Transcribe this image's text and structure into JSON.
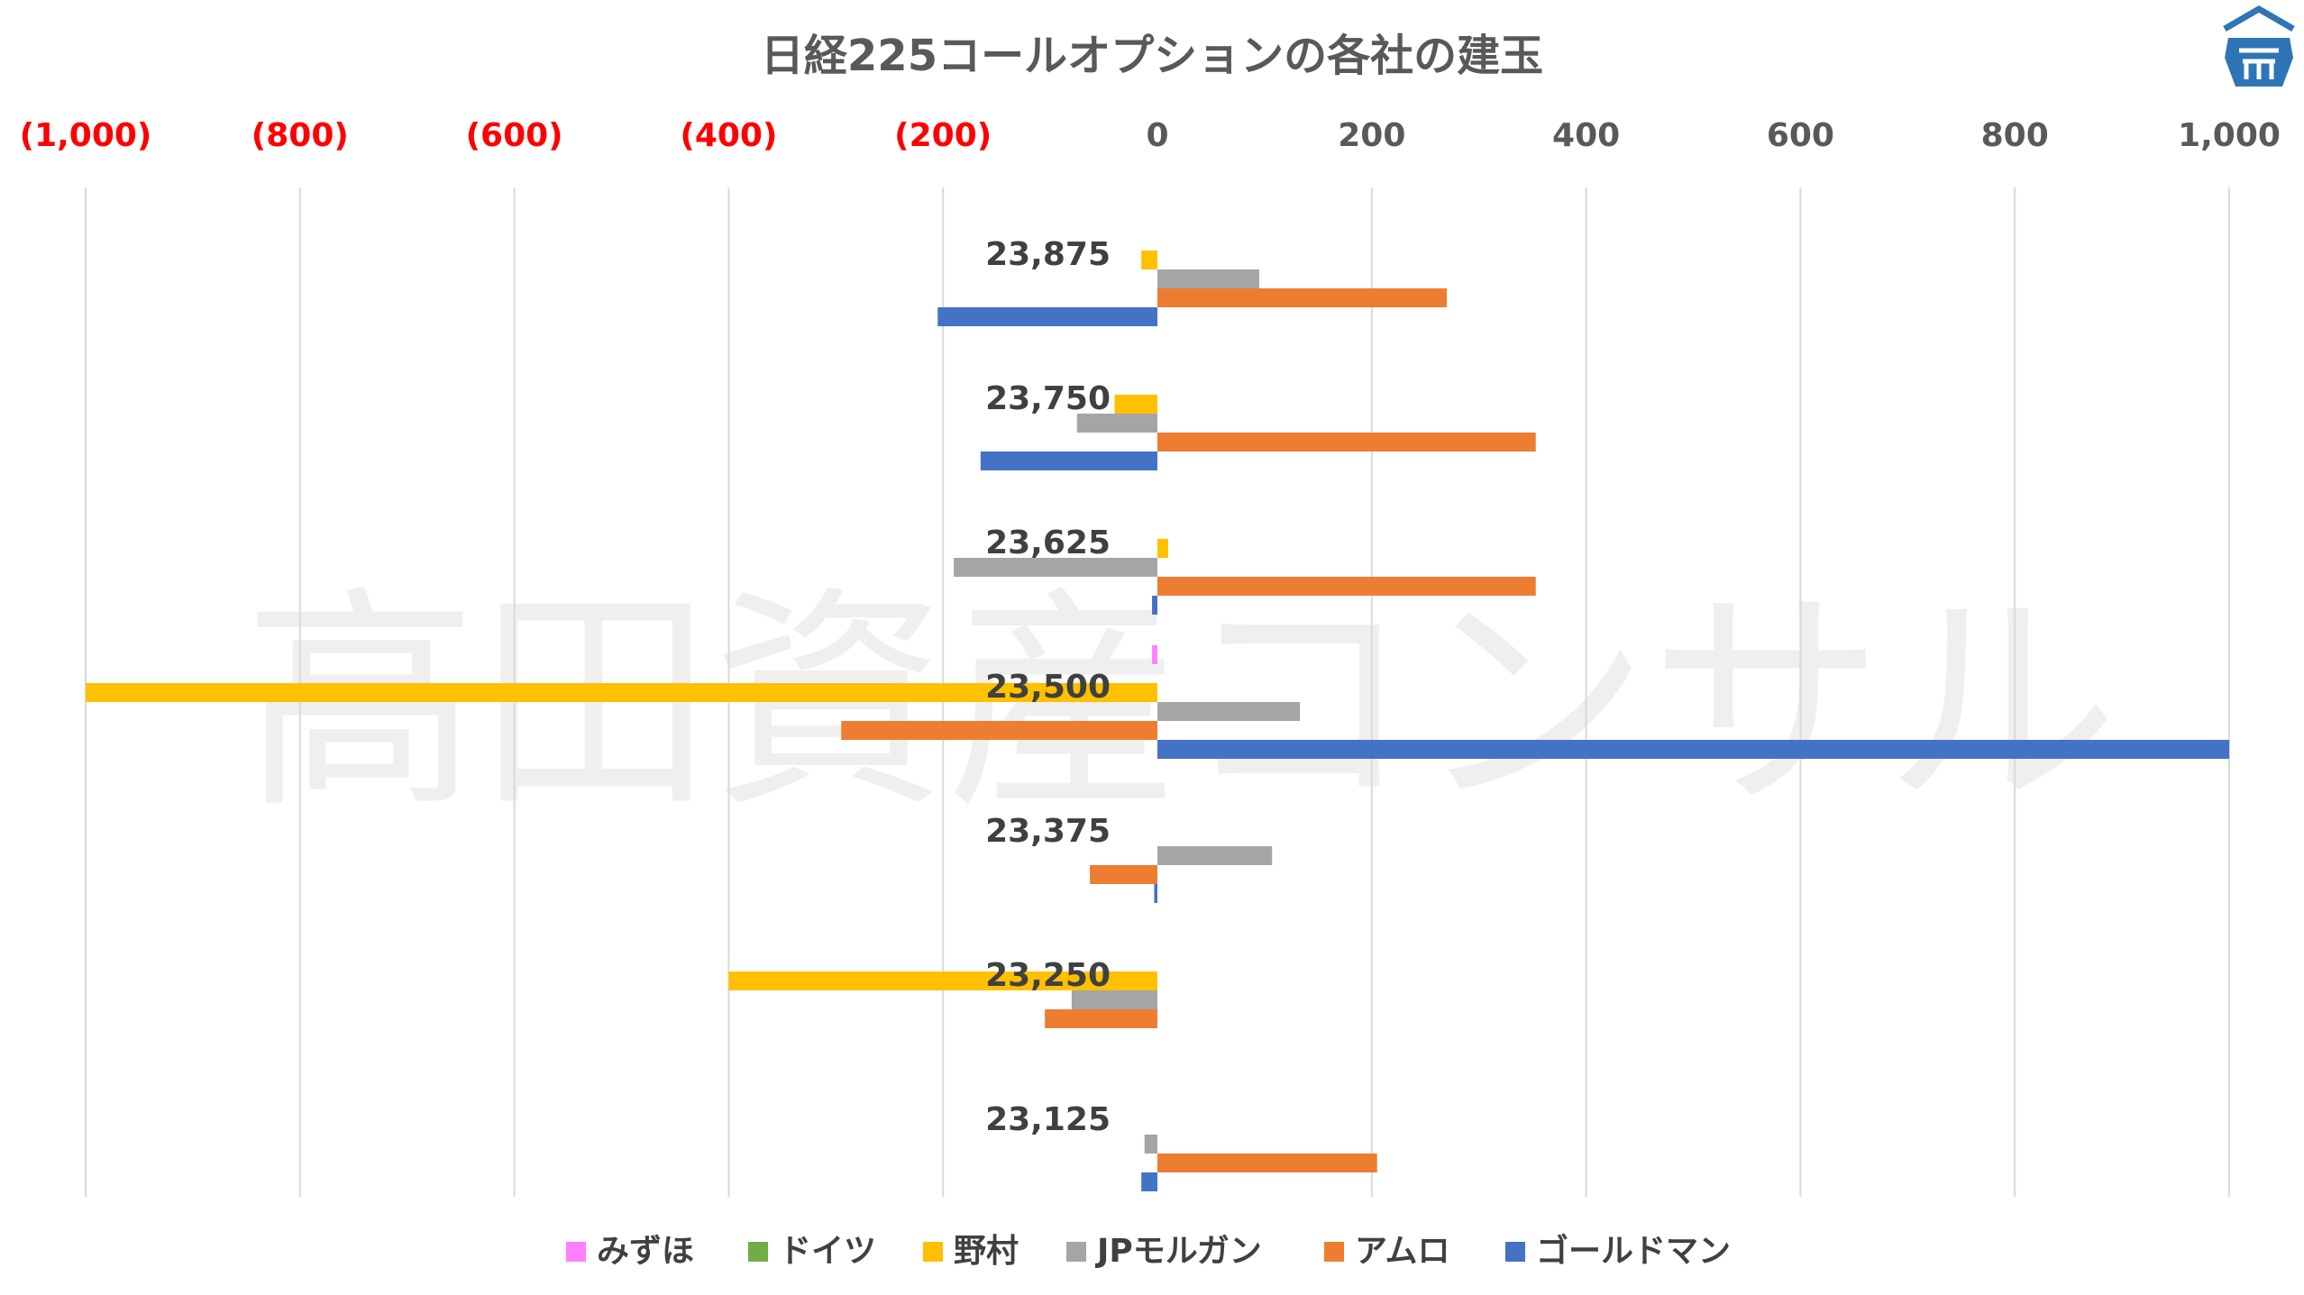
{
  "chart_data": {
    "type": "bar",
    "orientation": "horizontal",
    "title": "日経225コールオプションの各社の建玉",
    "watermark": "高田資産コンサル",
    "xlim": [
      -1000,
      1000
    ],
    "x_ticks": [
      -1000,
      -800,
      -600,
      -400,
      -200,
      0,
      200,
      400,
      600,
      800,
      1000
    ],
    "x_tick_labels": [
      "(1,000)",
      "(800)",
      "(600)",
      "(400)",
      "(200)",
      "0",
      "200",
      "400",
      "600",
      "800",
      "1,000"
    ],
    "x_tick_colors": {
      "negative": "#FF0000",
      "positive": "#595959"
    },
    "grid": true,
    "legend_position": "bottom",
    "categories": [
      "23,875",
      "23,750",
      "23,625",
      "23,500",
      "23,375",
      "23,250",
      "23,125"
    ],
    "series": [
      {
        "name": "みずほ",
        "color": "#FF80FF",
        "values": [
          0,
          0,
          0,
          -5,
          0,
          0,
          0
        ]
      },
      {
        "name": "ドイツ",
        "color": "#70AD47",
        "values": [
          0,
          0,
          0,
          0,
          0,
          0,
          0
        ]
      },
      {
        "name": "野村",
        "color": "#FFC000",
        "values": [
          -15,
          -40,
          10,
          -1000,
          0,
          -400,
          0
        ]
      },
      {
        "name": "JPモルガン",
        "color": "#A5A5A5",
        "values": [
          95,
          -75,
          -190,
          133,
          107,
          -80,
          -12
        ]
      },
      {
        "name": "アムロ",
        "color": "#ED7D31",
        "values": [
          270,
          353,
          353,
          -295,
          -63,
          -105,
          205
        ]
      },
      {
        "name": "ゴールドマン",
        "color": "#4472C4",
        "values": [
          -205,
          -165,
          -5,
          1000,
          -3,
          0,
          -15
        ]
      }
    ]
  },
  "logo": {
    "name": "logo-icon",
    "color": "#2E75B6"
  }
}
